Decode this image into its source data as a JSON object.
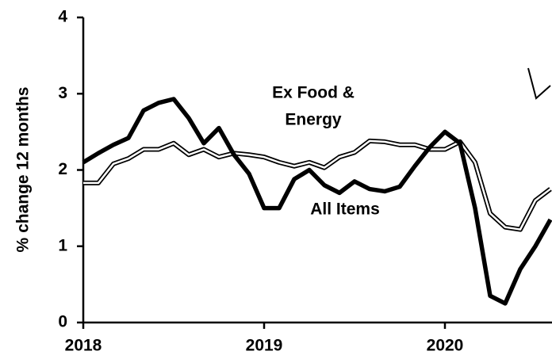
{
  "chart_data": {
    "type": "line",
    "y_label": "% change 12 months",
    "categories": [
      "2018",
      null,
      null,
      null,
      null,
      null,
      null,
      null,
      null,
      null,
      null,
      null,
      "2019",
      null,
      null,
      null,
      null,
      null,
      null,
      null,
      null,
      null,
      null,
      null,
      "2020",
      null,
      null,
      null,
      null,
      null,
      null,
      null
    ],
    "series": [
      {
        "name": "All Items",
        "color": "#000000",
        "style": "thick",
        "values": [
          2.1,
          2.22,
          2.33,
          2.42,
          2.78,
          2.88,
          2.93,
          2.68,
          2.35,
          2.55,
          2.2,
          1.95,
          1.5,
          1.5,
          1.88,
          2.0,
          1.8,
          1.7,
          1.85,
          1.75,
          1.72,
          1.78,
          2.05,
          2.3,
          2.5,
          2.35,
          1.5,
          0.35,
          0.25,
          0.7,
          1.0,
          1.35
        ]
      },
      {
        "name": "Ex Food & Energy",
        "color": "#000000",
        "style": "double",
        "values": [
          1.83,
          1.83,
          2.08,
          2.15,
          2.27,
          2.27,
          2.35,
          2.2,
          2.27,
          2.17,
          2.22,
          2.2,
          2.17,
          2.1,
          2.05,
          2.1,
          2.03,
          2.17,
          2.23,
          2.38,
          2.37,
          2.33,
          2.33,
          2.27,
          2.27,
          2.37,
          2.1,
          1.43,
          1.25,
          1.22,
          1.6,
          1.75
        ]
      }
    ],
    "annotations": [
      "Ex Food &",
      "Energy",
      "All Items"
    ],
    "ylim": [
      0,
      4
    ],
    "yticks": [
      0,
      1,
      2,
      3,
      4
    ],
    "grid": false
  }
}
